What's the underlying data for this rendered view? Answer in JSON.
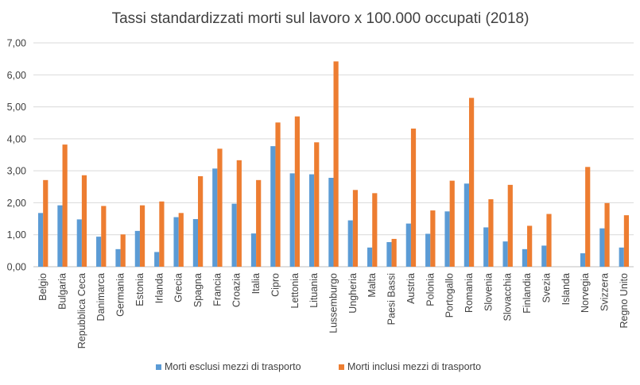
{
  "chart_data": {
    "type": "bar",
    "title": "Tassi standardizzati morti sul lavoro x 100.000 occupati (2018)",
    "xlabel": "",
    "ylabel": "",
    "ylim": [
      0,
      7
    ],
    "yticks": [
      "0,00",
      "1,00",
      "2,00",
      "3,00",
      "4,00",
      "5,00",
      "6,00",
      "7,00"
    ],
    "grid": true,
    "legend_position": "bottom",
    "categories": [
      "Belgio",
      "Bulgaria",
      "Repubblica Ceca",
      "Danimarca",
      "Germania",
      "Estonia",
      "Irlanda",
      "Grecia",
      "Spagna",
      "Francia",
      "Croazia",
      "Italia",
      "Cipro",
      "Lettonia",
      "Lituania",
      "Lussemburgo",
      "Ungheria",
      "Malta",
      "Paesi Bassi",
      "Austria",
      "Polonia",
      "Portogallo",
      "Romania",
      "Slovenia",
      "Slovacchia",
      "Finlandia",
      "Svezia",
      "Islanda",
      "Norvegia",
      "Svizzera",
      "Regno Unito"
    ],
    "series": [
      {
        "name": "Morti esclusi mezzi di trasporto",
        "color": "#5b9bd5",
        "values": [
          1.68,
          1.92,
          1.48,
          0.94,
          0.55,
          1.12,
          0.46,
          1.55,
          1.49,
          3.07,
          1.97,
          1.04,
          3.77,
          2.92,
          2.89,
          2.78,
          1.45,
          0.6,
          0.77,
          1.35,
          1.03,
          1.73,
          2.6,
          1.23,
          0.79,
          0.55,
          0.66,
          0.0,
          0.42,
          1.2,
          0.6
        ]
      },
      {
        "name": "Morti inclusi mezzi di trasporto",
        "color": "#ed7d31",
        "values": [
          2.71,
          3.82,
          2.86,
          1.9,
          1.01,
          1.92,
          2.04,
          1.68,
          2.83,
          3.69,
          3.33,
          2.71,
          4.51,
          4.7,
          3.89,
          6.42,
          2.4,
          2.3,
          0.87,
          4.32,
          1.76,
          2.69,
          5.28,
          2.11,
          2.56,
          1.28,
          1.65,
          0.0,
          3.12,
          1.99,
          1.61
        ]
      }
    ]
  }
}
